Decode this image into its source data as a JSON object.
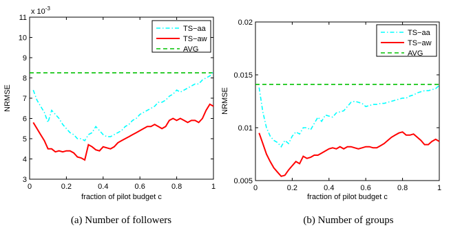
{
  "chart_data": [
    {
      "type": "line",
      "caption": "(a) Number of followers",
      "xlabel": "fraction of pilot budget c",
      "ylabel": "NRMSE",
      "y_multiplier_label": "x 10",
      "y_multiplier_exp": "-3",
      "xlim": [
        0,
        1
      ],
      "ylim": [
        3,
        11
      ],
      "xticks": [
        0,
        0.2,
        0.4,
        0.6,
        0.8,
        1
      ],
      "xtick_labels": [
        "0",
        "0.2",
        "0.4",
        "0.6",
        "0.8",
        "1"
      ],
      "yticks": [
        3,
        4,
        5,
        6,
        7,
        8,
        9,
        10,
        11
      ],
      "ytick_labels": [
        "3",
        "4",
        "5",
        "6",
        "7",
        "8",
        "9",
        "10",
        "11"
      ],
      "legend_position": "top-right",
      "series": [
        {
          "name": "TS−aa",
          "color": "#00ffff",
          "dash": "dashdot",
          "x": [
            0.02,
            0.04,
            0.06,
            0.08,
            0.1,
            0.12,
            0.14,
            0.16,
            0.18,
            0.2,
            0.22,
            0.24,
            0.26,
            0.28,
            0.3,
            0.32,
            0.34,
            0.36,
            0.38,
            0.4,
            0.42,
            0.44,
            0.46,
            0.48,
            0.5,
            0.52,
            0.54,
            0.56,
            0.58,
            0.6,
            0.62,
            0.64,
            0.66,
            0.68,
            0.7,
            0.72,
            0.74,
            0.76,
            0.78,
            0.8,
            0.82,
            0.84,
            0.86,
            0.88,
            0.9,
            0.92,
            0.94,
            0.96,
            0.98,
            1.0
          ],
          "y": [
            7.4,
            6.9,
            6.6,
            6.3,
            5.8,
            6.4,
            6.2,
            6.0,
            5.7,
            5.5,
            5.3,
            5.2,
            5.0,
            5.0,
            4.9,
            5.2,
            5.3,
            5.6,
            5.4,
            5.2,
            5.1,
            5.1,
            5.2,
            5.3,
            5.4,
            5.6,
            5.7,
            5.9,
            6.0,
            6.2,
            6.3,
            6.4,
            6.5,
            6.6,
            6.8,
            6.8,
            6.9,
            7.1,
            7.2,
            7.4,
            7.3,
            7.4,
            7.5,
            7.6,
            7.7,
            7.7,
            7.9,
            8.0,
            8.1,
            8.3
          ]
        },
        {
          "name": "TS−aw",
          "color": "#ff0000",
          "dash": "solid",
          "x": [
            0.02,
            0.04,
            0.06,
            0.08,
            0.1,
            0.12,
            0.14,
            0.16,
            0.18,
            0.2,
            0.22,
            0.24,
            0.26,
            0.28,
            0.3,
            0.32,
            0.34,
            0.36,
            0.38,
            0.4,
            0.42,
            0.44,
            0.46,
            0.48,
            0.5,
            0.52,
            0.54,
            0.56,
            0.58,
            0.6,
            0.62,
            0.64,
            0.66,
            0.68,
            0.7,
            0.72,
            0.74,
            0.76,
            0.78,
            0.8,
            0.82,
            0.84,
            0.86,
            0.88,
            0.9,
            0.92,
            0.94,
            0.96,
            0.98,
            1.0
          ],
          "y": [
            5.8,
            5.5,
            5.2,
            4.9,
            4.5,
            4.5,
            4.35,
            4.4,
            4.35,
            4.4,
            4.4,
            4.3,
            4.1,
            4.05,
            3.95,
            4.7,
            4.6,
            4.45,
            4.4,
            4.6,
            4.55,
            4.5,
            4.6,
            4.8,
            4.9,
            5.0,
            5.1,
            5.2,
            5.3,
            5.4,
            5.5,
            5.6,
            5.6,
            5.7,
            5.6,
            5.5,
            5.6,
            5.9,
            6.0,
            5.9,
            6.0,
            5.9,
            5.8,
            5.9,
            5.9,
            5.8,
            6.0,
            6.4,
            6.7,
            6.6
          ]
        },
        {
          "name": "AVG",
          "color": "#00c000",
          "dash": "dashed",
          "x": [
            0,
            1
          ],
          "y": [
            8.25,
            8.25
          ]
        }
      ]
    },
    {
      "type": "line",
      "caption": "(b) Number of groups",
      "xlabel": "fraction of pilot budget c",
      "ylabel": "NRMSE",
      "xlim": [
        0,
        1
      ],
      "ylim": [
        0.005,
        0.02
      ],
      "xticks": [
        0,
        0.2,
        0.4,
        0.6,
        0.8,
        1
      ],
      "xtick_labels": [
        "0",
        "0.2",
        "0.4",
        "0.6",
        "0.8",
        "1"
      ],
      "yticks": [
        0.005,
        0.01,
        0.015,
        0.02
      ],
      "ytick_labels": [
        "0.005",
        "0.01",
        "0.015",
        "0.02"
      ],
      "legend_position": "top-right",
      "series": [
        {
          "name": "TS−aa",
          "color": "#00ffff",
          "dash": "dashdot",
          "x": [
            0.02,
            0.04,
            0.06,
            0.08,
            0.1,
            0.12,
            0.14,
            0.16,
            0.18,
            0.2,
            0.22,
            0.24,
            0.26,
            0.28,
            0.3,
            0.32,
            0.34,
            0.36,
            0.38,
            0.4,
            0.42,
            0.44,
            0.46,
            0.48,
            0.5,
            0.52,
            0.54,
            0.56,
            0.58,
            0.6,
            0.62,
            0.64,
            0.66,
            0.68,
            0.7,
            0.72,
            0.74,
            0.76,
            0.78,
            0.8,
            0.82,
            0.84,
            0.86,
            0.88,
            0.9,
            0.92,
            0.94,
            0.96,
            0.98,
            1.0
          ],
          "y": [
            0.0138,
            0.0115,
            0.01,
            0.0092,
            0.0088,
            0.0086,
            0.0082,
            0.0088,
            0.0085,
            0.0092,
            0.0096,
            0.0094,
            0.01,
            0.01,
            0.0098,
            0.0104,
            0.011,
            0.0106,
            0.0112,
            0.0111,
            0.011,
            0.0114,
            0.0115,
            0.0116,
            0.012,
            0.0124,
            0.0125,
            0.0124,
            0.0123,
            0.012,
            0.0121,
            0.0122,
            0.0122,
            0.0123,
            0.0123,
            0.0124,
            0.0125,
            0.0126,
            0.0127,
            0.0128,
            0.0128,
            0.013,
            0.0131,
            0.0133,
            0.0134,
            0.0135,
            0.0135,
            0.0136,
            0.0137,
            0.014
          ]
        },
        {
          "name": "TS−aw",
          "color": "#ff0000",
          "dash": "solid",
          "x": [
            0.02,
            0.04,
            0.06,
            0.08,
            0.1,
            0.12,
            0.14,
            0.16,
            0.18,
            0.2,
            0.22,
            0.24,
            0.26,
            0.28,
            0.3,
            0.32,
            0.34,
            0.36,
            0.38,
            0.4,
            0.42,
            0.44,
            0.46,
            0.48,
            0.5,
            0.52,
            0.54,
            0.56,
            0.58,
            0.6,
            0.62,
            0.64,
            0.66,
            0.68,
            0.7,
            0.72,
            0.74,
            0.76,
            0.78,
            0.8,
            0.82,
            0.84,
            0.86,
            0.88,
            0.9,
            0.92,
            0.94,
            0.96,
            0.98,
            1.0
          ],
          "y": [
            0.0095,
            0.0085,
            0.0075,
            0.0068,
            0.0062,
            0.0058,
            0.0054,
            0.0055,
            0.006,
            0.0064,
            0.0068,
            0.0066,
            0.0073,
            0.0071,
            0.0072,
            0.0074,
            0.0074,
            0.0076,
            0.0078,
            0.008,
            0.0081,
            0.008,
            0.0082,
            0.008,
            0.0082,
            0.0082,
            0.0081,
            0.008,
            0.0081,
            0.0082,
            0.0082,
            0.0081,
            0.0081,
            0.0083,
            0.0085,
            0.0088,
            0.0091,
            0.0093,
            0.0095,
            0.0096,
            0.0093,
            0.0093,
            0.0094,
            0.0091,
            0.0088,
            0.0084,
            0.0084,
            0.0087,
            0.0089,
            0.0087
          ]
        },
        {
          "name": "AVG",
          "color": "#00c000",
          "dash": "dashed",
          "x": [
            0,
            1
          ],
          "y": [
            0.0141,
            0.0141
          ]
        }
      ]
    }
  ]
}
